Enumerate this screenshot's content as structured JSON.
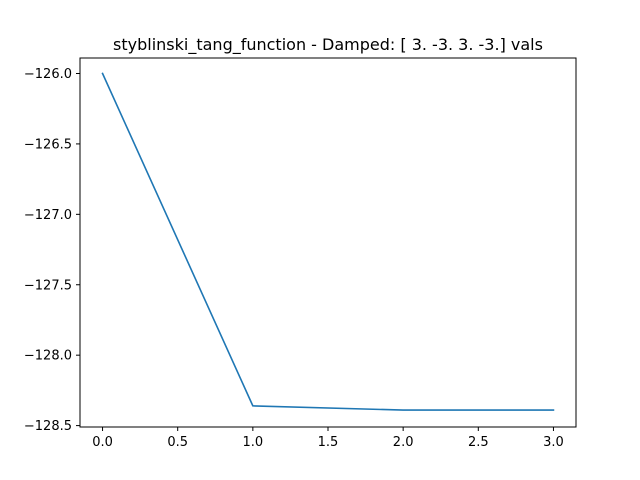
{
  "chart_data": {
    "type": "line",
    "title": "styblinski_tang_function - Damped: [ 3. -3.  3. -3.] vals",
    "xlabel": "",
    "ylabel": "",
    "x": [
      0,
      1,
      2,
      3
    ],
    "series": [
      {
        "values": [
          -126.0,
          -128.36,
          -128.39,
          -128.39
        ],
        "color": "#1f77b4"
      }
    ],
    "xlim": [
      -0.15,
      3.15
    ],
    "ylim": [
      -128.51,
      -125.89
    ],
    "xticks": [
      0.0,
      0.5,
      1.0,
      1.5,
      2.0,
      2.5,
      3.0
    ],
    "xtick_labels": [
      "0.0",
      "0.5",
      "1.0",
      "1.5",
      "2.0",
      "2.5",
      "3.0"
    ],
    "yticks": [
      -126.0,
      -126.5,
      -127.0,
      -127.5,
      -128.0,
      -128.5
    ],
    "ytick_labels": [
      "−126.0",
      "−126.5",
      "−127.0",
      "−127.5",
      "−128.0",
      "−128.5"
    ],
    "grid": false,
    "legend": "none"
  }
}
